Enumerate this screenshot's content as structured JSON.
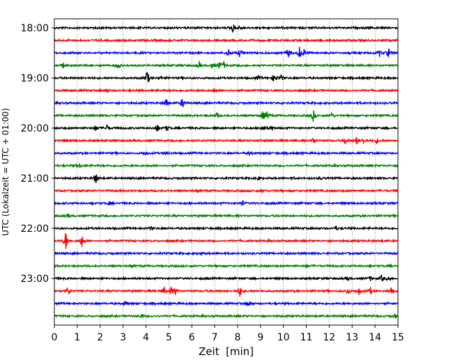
{
  "chart_data": {
    "type": "line",
    "title": "",
    "xlabel": "Zeit  [min]",
    "ylabel": "UTC (Lokalzeit = UTC + 01:00)",
    "xlim": [
      0,
      15
    ],
    "x_ticks": [
      "0",
      "1",
      "2",
      "3",
      "4",
      "5",
      "6",
      "7",
      "8",
      "9",
      "10",
      "11",
      "12",
      "13",
      "14",
      "15"
    ],
    "y_ticks": [
      "18:00",
      "19:00",
      "20:00",
      "21:00",
      "22:00",
      "23:00"
    ],
    "grid": "vertical dotted lines at each minute",
    "color_cycle": [
      "#000000",
      "#ff0000",
      "#0000ff",
      "#008000"
    ],
    "series": [
      {
        "start": "18:00",
        "events": [
          [
            7.8,
            1.0
          ],
          [
            8.1,
            0.5
          ]
        ]
      },
      {
        "start": "18:15",
        "events": []
      },
      {
        "start": "18:30",
        "events": [
          [
            7.6,
            0.9
          ],
          [
            8.1,
            0.8
          ],
          [
            10.2,
            0.9
          ],
          [
            10.7,
            1.0
          ],
          [
            10.9,
            0.6
          ],
          [
            14.2,
            0.6
          ],
          [
            14.6,
            0.9
          ]
        ]
      },
      {
        "start": "18:45",
        "events": [
          [
            0.4,
            0.5
          ],
          [
            2.8,
            0.7
          ],
          [
            6.3,
            0.7
          ],
          [
            6.9,
            0.6
          ],
          [
            7.2,
            0.8
          ],
          [
            7.4,
            0.6
          ]
        ]
      },
      {
        "start": "19:00",
        "events": [
          [
            4.05,
            1.7
          ],
          [
            9.6,
            1.0
          ],
          [
            9.9,
            0.5
          ],
          [
            8.9,
            0.4
          ],
          [
            4.6,
            0.4
          ]
        ]
      },
      {
        "start": "19:15",
        "events": [
          [
            2.3,
            0.4
          ],
          [
            7.0,
            0.4
          ]
        ]
      },
      {
        "start": "19:30",
        "events": [
          [
            4.9,
            1.0
          ],
          [
            5.6,
            0.9
          ]
        ]
      },
      {
        "start": "19:45",
        "events": [
          [
            7.1,
            0.6
          ],
          [
            9.1,
            0.9
          ],
          [
            9.3,
            0.8
          ],
          [
            11.3,
            1.1
          ],
          [
            12.1,
            0.5
          ]
        ]
      },
      {
        "start": "20:00",
        "events": [
          [
            1.8,
            0.6
          ],
          [
            2.3,
            0.6
          ],
          [
            4.5,
            0.7
          ],
          [
            4.9,
            0.5
          ],
          [
            9.1,
            0.5
          ],
          [
            9.5,
            0.4
          ]
        ]
      },
      {
        "start": "20:15",
        "events": [
          [
            11.3,
            0.6
          ],
          [
            12.7,
            0.7
          ],
          [
            13.2,
            0.7
          ],
          [
            13.5,
            0.5
          ],
          [
            14.1,
            0.4
          ]
        ]
      },
      {
        "start": "20:30",
        "events": [
          [
            4.0,
            0.4
          ],
          [
            4.9,
            0.4
          ],
          [
            8.5,
            0.3
          ]
        ]
      },
      {
        "start": "20:45",
        "events": [
          [
            1.1,
            0.3
          ]
        ]
      },
      {
        "start": "21:00",
        "events": [
          [
            1.8,
            1.1
          ],
          [
            8.9,
            0.4
          ],
          [
            11.6,
            0.3
          ]
        ]
      },
      {
        "start": "21:15",
        "events": [
          [
            9.1,
            0.3
          ]
        ]
      },
      {
        "start": "21:30",
        "events": [
          [
            8.2,
            0.5
          ],
          [
            2.4,
            0.3
          ]
        ]
      },
      {
        "start": "21:45",
        "events": [
          [
            0.6,
            0.3
          ]
        ]
      },
      {
        "start": "22:00",
        "events": [
          [
            12.3,
            0.4
          ],
          [
            4.2,
            0.3
          ]
        ]
      },
      {
        "start": "22:15",
        "events": [
          [
            0.5,
            1.8
          ],
          [
            1.2,
            1.1
          ]
        ]
      },
      {
        "start": "22:30",
        "events": [
          [
            6.4,
            0.3
          ]
        ]
      },
      {
        "start": "22:45",
        "events": [
          [
            11.0,
            0.3
          ]
        ]
      },
      {
        "start": "23:00",
        "events": [
          [
            12.8,
            0.4
          ],
          [
            13.8,
            0.4
          ],
          [
            14.3,
            0.7
          ],
          [
            14.6,
            0.5
          ]
        ]
      },
      {
        "start": "23:15",
        "events": [
          [
            0.6,
            0.8
          ],
          [
            4.8,
            0.7
          ],
          [
            5.1,
            0.8
          ],
          [
            5.3,
            0.7
          ],
          [
            8.1,
            1.0
          ],
          [
            12.8,
            0.6
          ],
          [
            13.3,
            0.7
          ],
          [
            13.8,
            0.6
          ],
          [
            14.7,
            0.5
          ]
        ]
      },
      {
        "start": "23:30",
        "events": [
          [
            3.1,
            0.5
          ],
          [
            8.5,
            0.7
          ]
        ]
      },
      {
        "start": "23:45",
        "events": [
          [
            3.8,
            0.3
          ],
          [
            14.9,
            0.4
          ]
        ]
      }
    ]
  }
}
